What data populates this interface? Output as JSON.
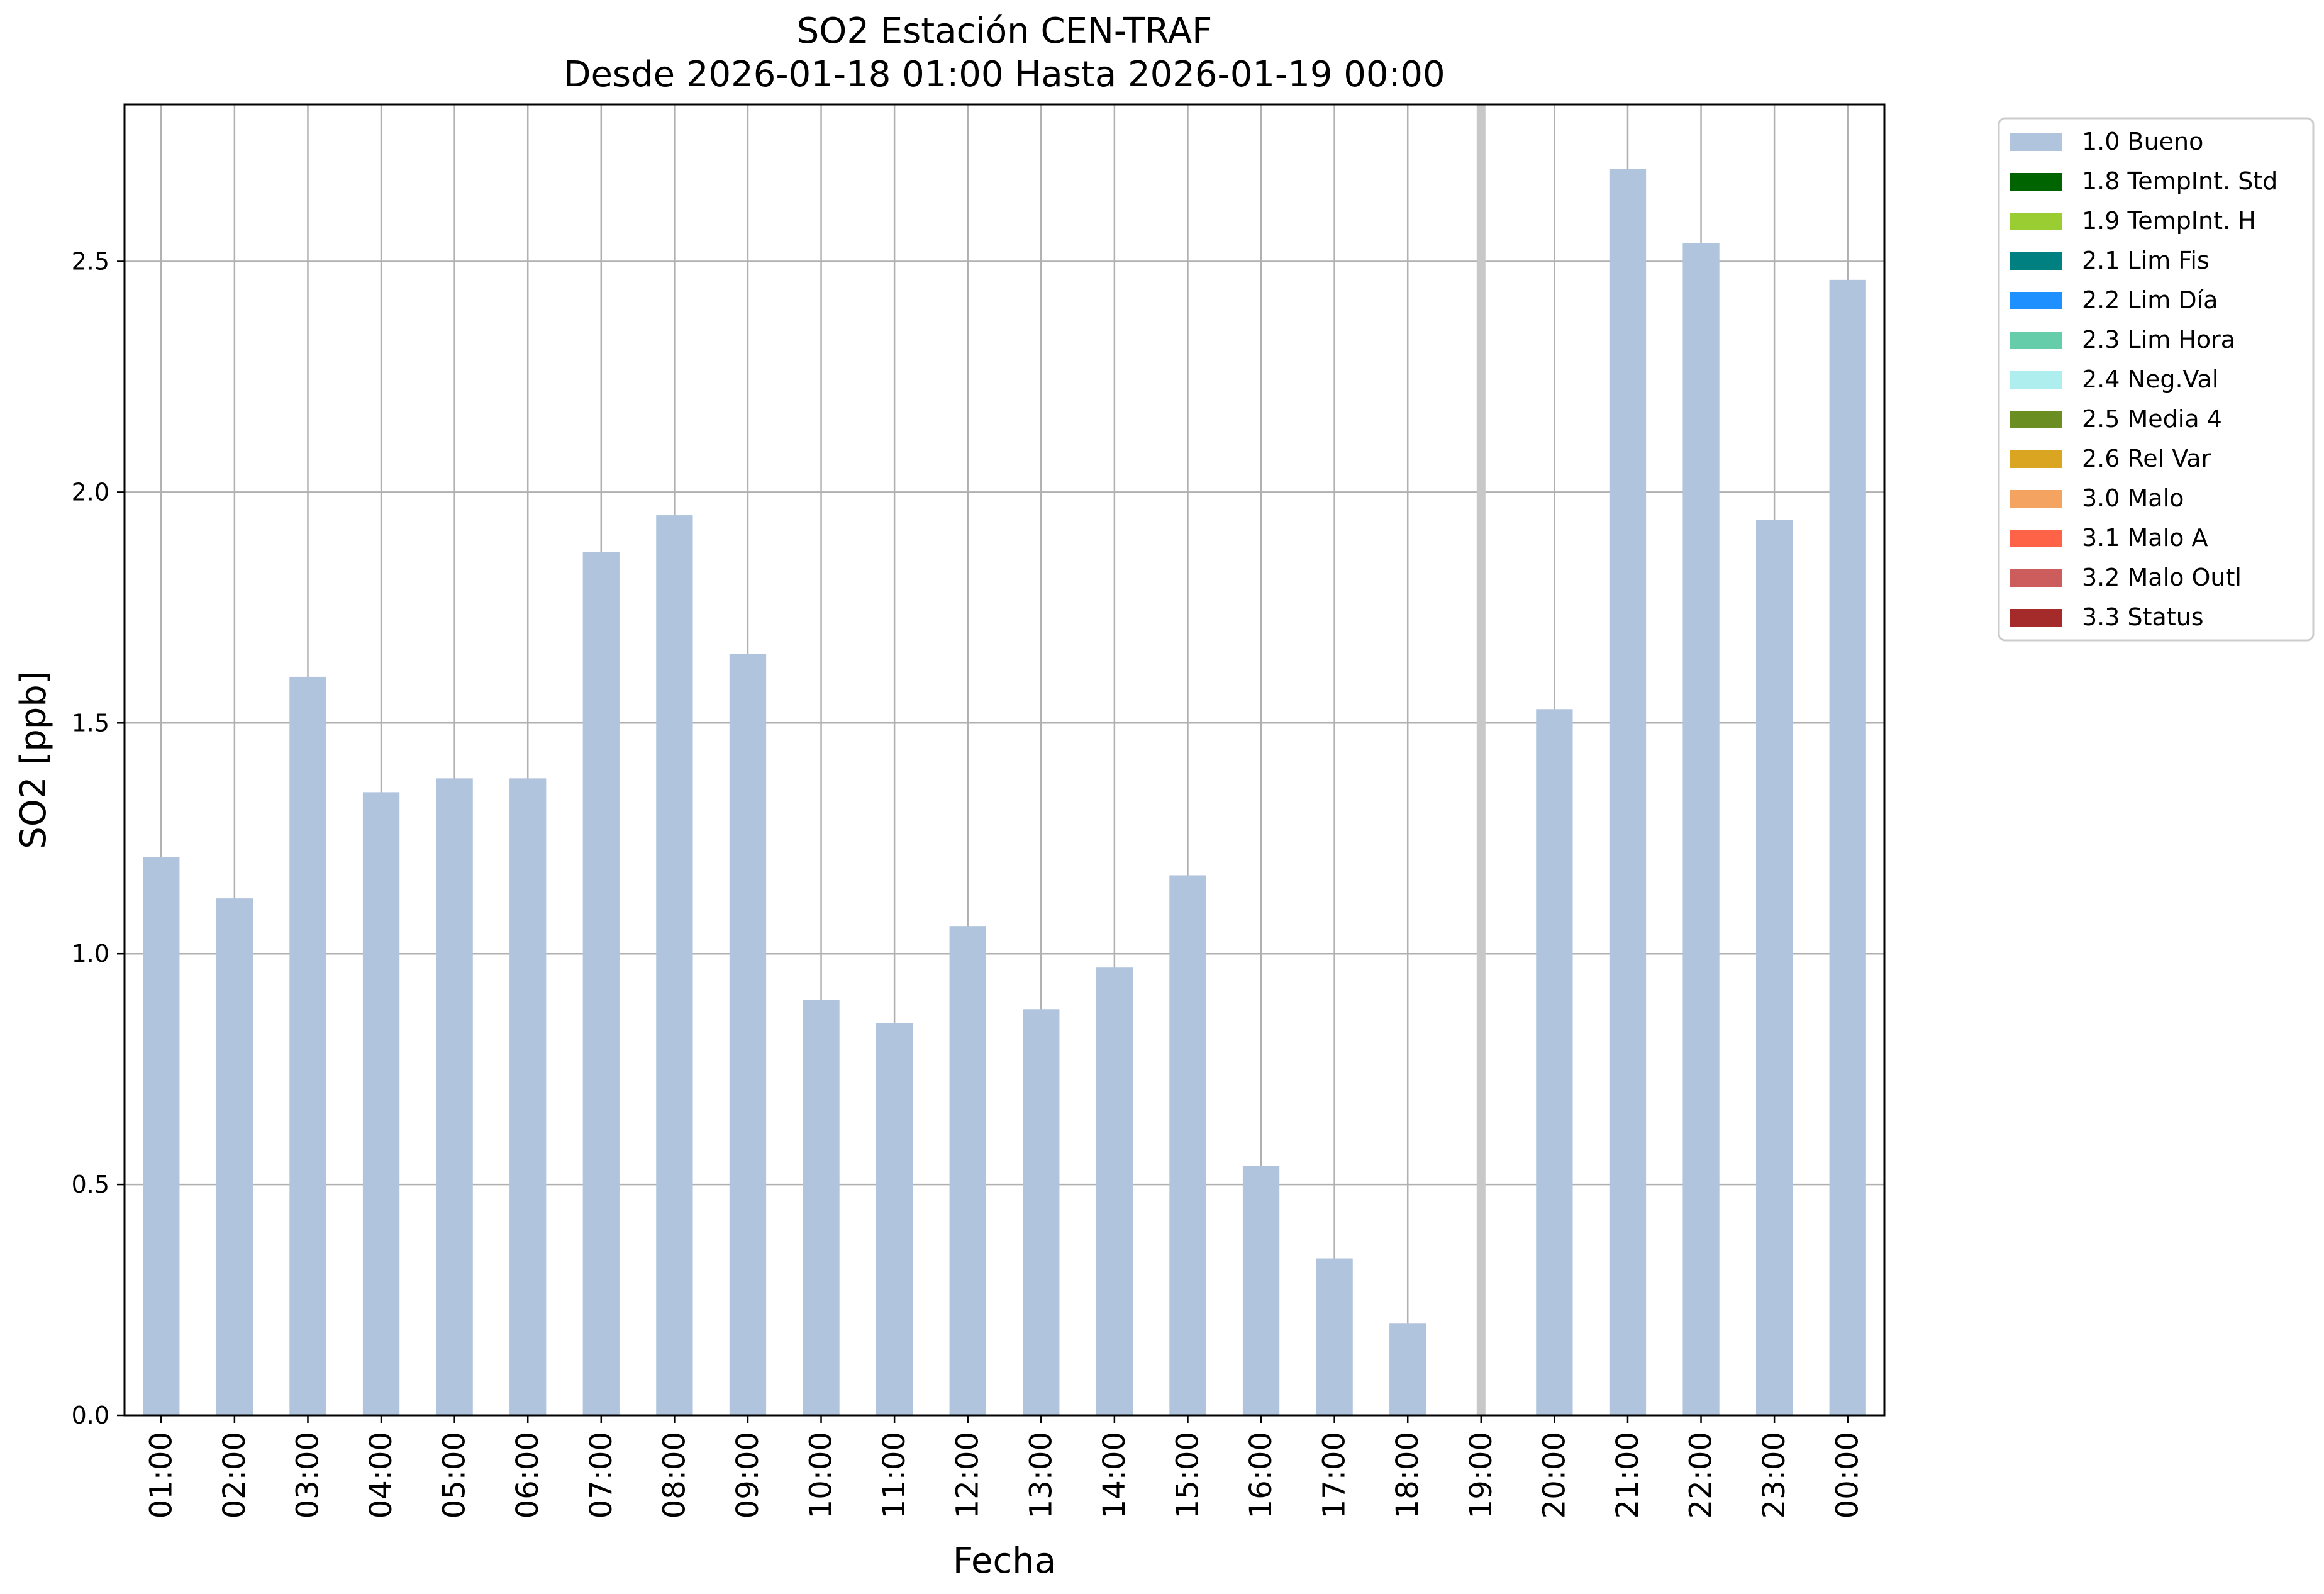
{
  "chart_data": {
    "type": "bar",
    "title": "SO2 Estación CEN-TRAF",
    "subtitle": "Desde 2026-01-18 01:00 Hasta 2026-01-19 00:00",
    "xlabel": "Fecha",
    "ylabel": "SO2 [ppb]",
    "ylim": [
      0,
      2.84
    ],
    "yticks": [
      "0.0",
      "0.5",
      "1.0",
      "1.5",
      "2.0",
      "2.5"
    ],
    "grid": true,
    "legend_position": "outside-top-right",
    "categories": [
      "01:00",
      "02:00",
      "03:00",
      "04:00",
      "05:00",
      "06:00",
      "07:00",
      "08:00",
      "09:00",
      "10:00",
      "11:00",
      "12:00",
      "13:00",
      "14:00",
      "15:00",
      "16:00",
      "17:00",
      "18:00",
      "19:00",
      "20:00",
      "21:00",
      "22:00",
      "23:00",
      "00:00"
    ],
    "series": [
      {
        "name": "1.0 Bueno",
        "color": "#b0c4de",
        "values": [
          1.21,
          1.12,
          1.6,
          1.35,
          1.38,
          1.38,
          1.87,
          1.95,
          1.65,
          0.9,
          0.85,
          1.06,
          0.88,
          0.97,
          1.17,
          0.54,
          0.34,
          0.2,
          null,
          1.53,
          2.7,
          2.54,
          1.94,
          2.46
        ]
      }
    ],
    "missing_marker": {
      "category": "19:00",
      "color": "#c8c8c8"
    },
    "legend": [
      {
        "label": "1.0 Bueno",
        "color": "#b0c4de"
      },
      {
        "label": "1.8 TempInt. Std",
        "color": "#006400"
      },
      {
        "label": "1.9 TempInt. H",
        "color": "#9acd32"
      },
      {
        "label": "2.1 Lim Fis",
        "color": "#008080"
      },
      {
        "label": "2.2 Lim Día",
        "color": "#1e90ff"
      },
      {
        "label": "2.3 Lim Hora",
        "color": "#66cdaa"
      },
      {
        "label": "2.4 Neg.Val",
        "color": "#afeeee"
      },
      {
        "label": "2.5 Media 4",
        "color": "#6b8e23"
      },
      {
        "label": "2.6 Rel Var",
        "color": "#daa520"
      },
      {
        "label": "3.0 Malo",
        "color": "#f4a460"
      },
      {
        "label": "3.1 Malo A",
        "color": "#ff6347"
      },
      {
        "label": "3.2 Malo Outl",
        "color": "#cd5c5c"
      },
      {
        "label": "3.3 Status",
        "color": "#a52a2a"
      }
    ]
  }
}
